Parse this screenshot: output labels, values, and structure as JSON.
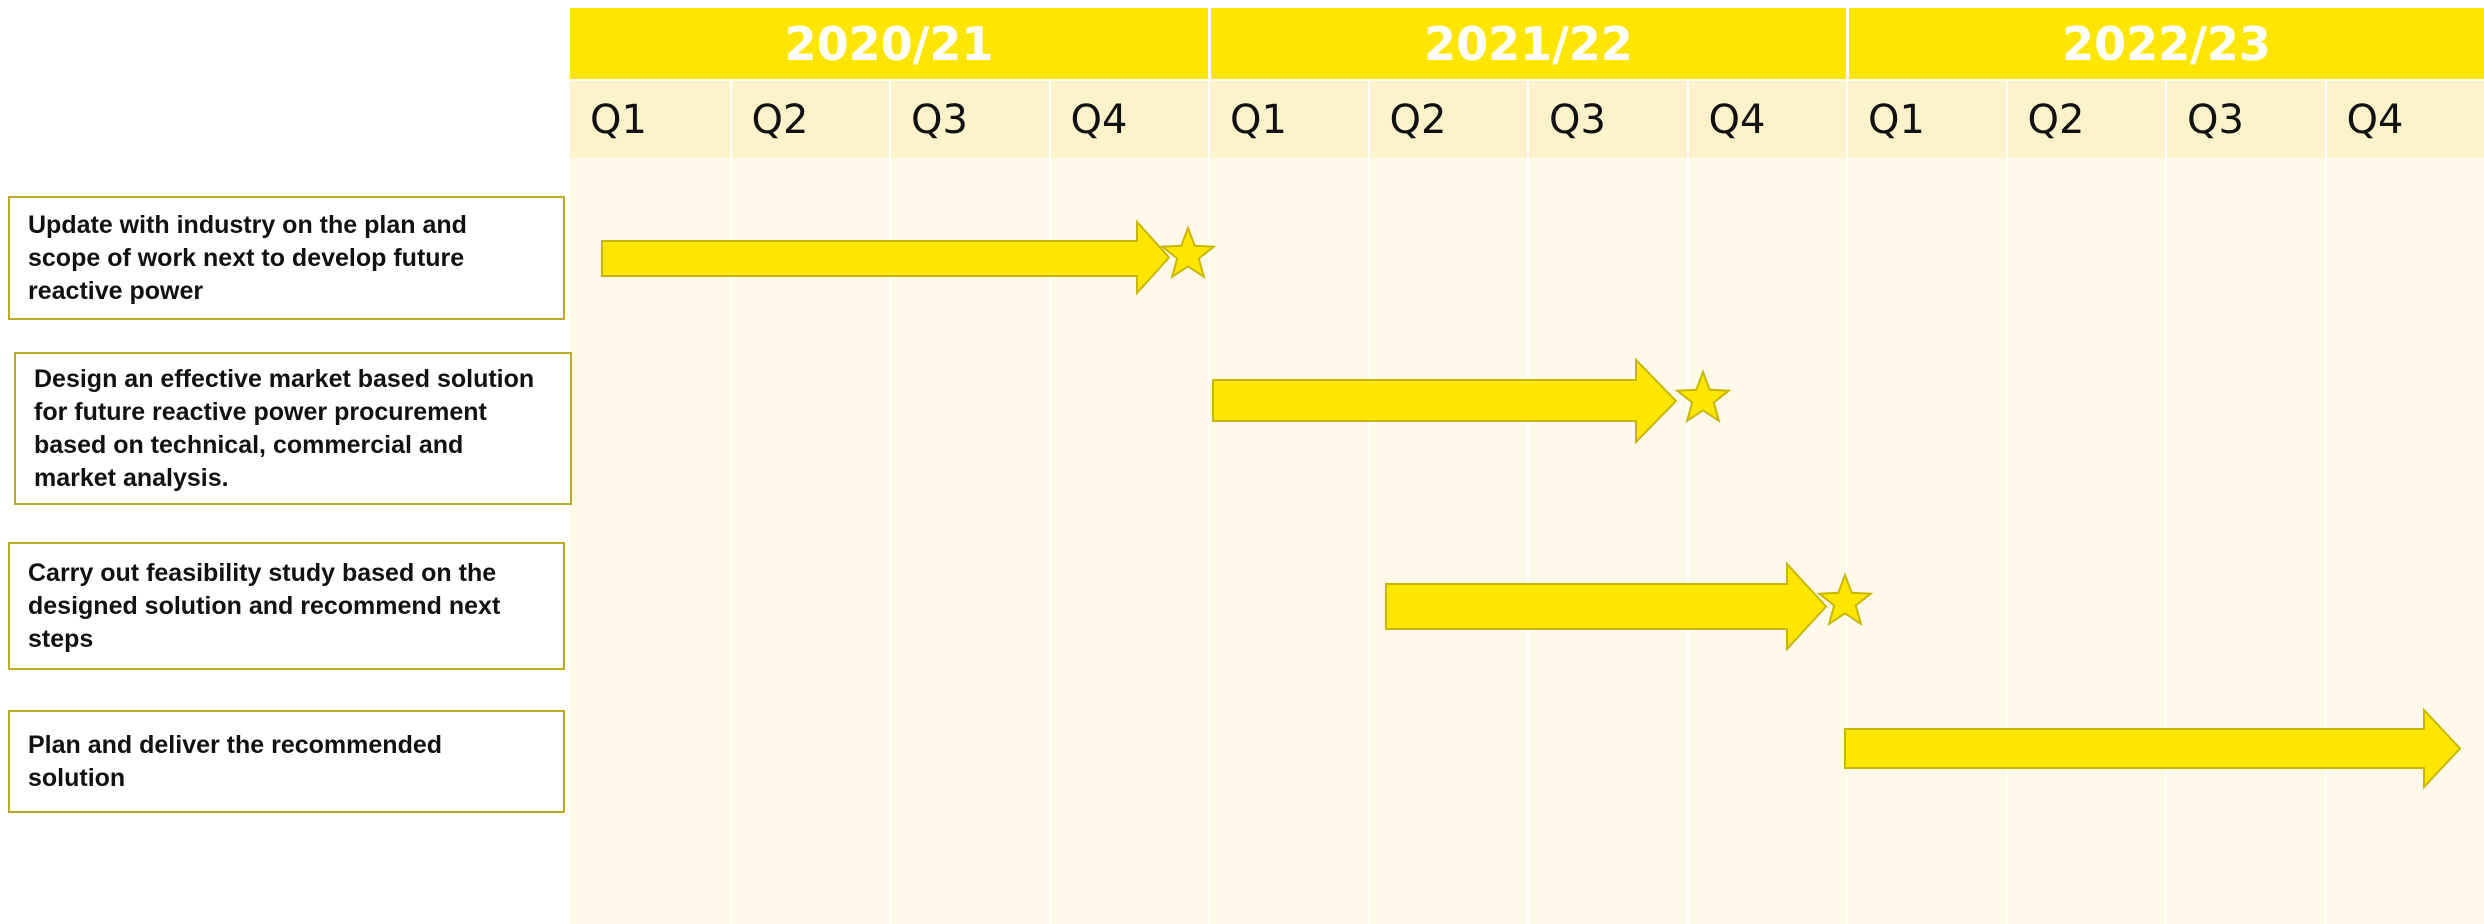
{
  "header": {
    "years": [
      {
        "label": "2020/21",
        "quarters": [
          "Q1",
          "Q2",
          "Q3",
          "Q4"
        ]
      },
      {
        "label": "2021/22",
        "quarters": [
          "Q1",
          "Q2",
          "Q3",
          "Q4"
        ]
      },
      {
        "label": "2022/23",
        "quarters": [
          "Q1",
          "Q2",
          "Q3",
          "Q4"
        ]
      }
    ]
  },
  "tasks": [
    {
      "label": "Update with industry on the plan and scope  of work next to develop future reactive power"
    },
    {
      "label": "Design an effective market based solution for future reactive power procurement based on technical, commercial and market analysis."
    },
    {
      "label": "Carry out feasibility study  based on the designed solution and recommend next steps"
    },
    {
      "label": "Plan and deliver the recommended solution"
    }
  ]
}
